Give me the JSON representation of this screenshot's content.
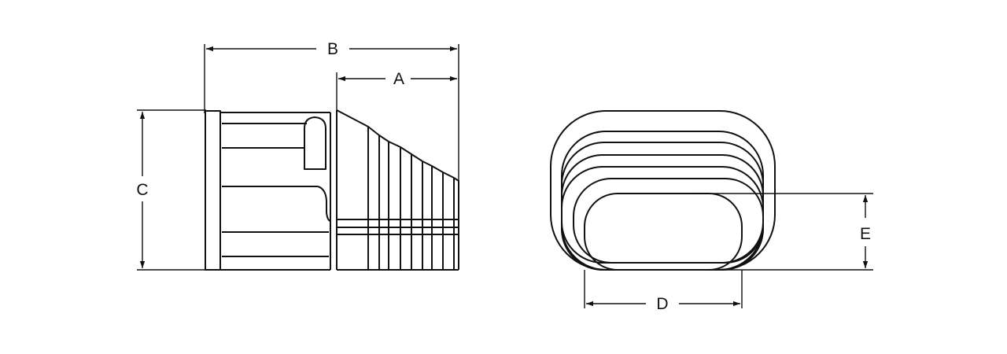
{
  "figure": {
    "dimension_labels": {
      "A": "A",
      "B": "B",
      "C": "C",
      "D": "D",
      "E": "E"
    }
  }
}
